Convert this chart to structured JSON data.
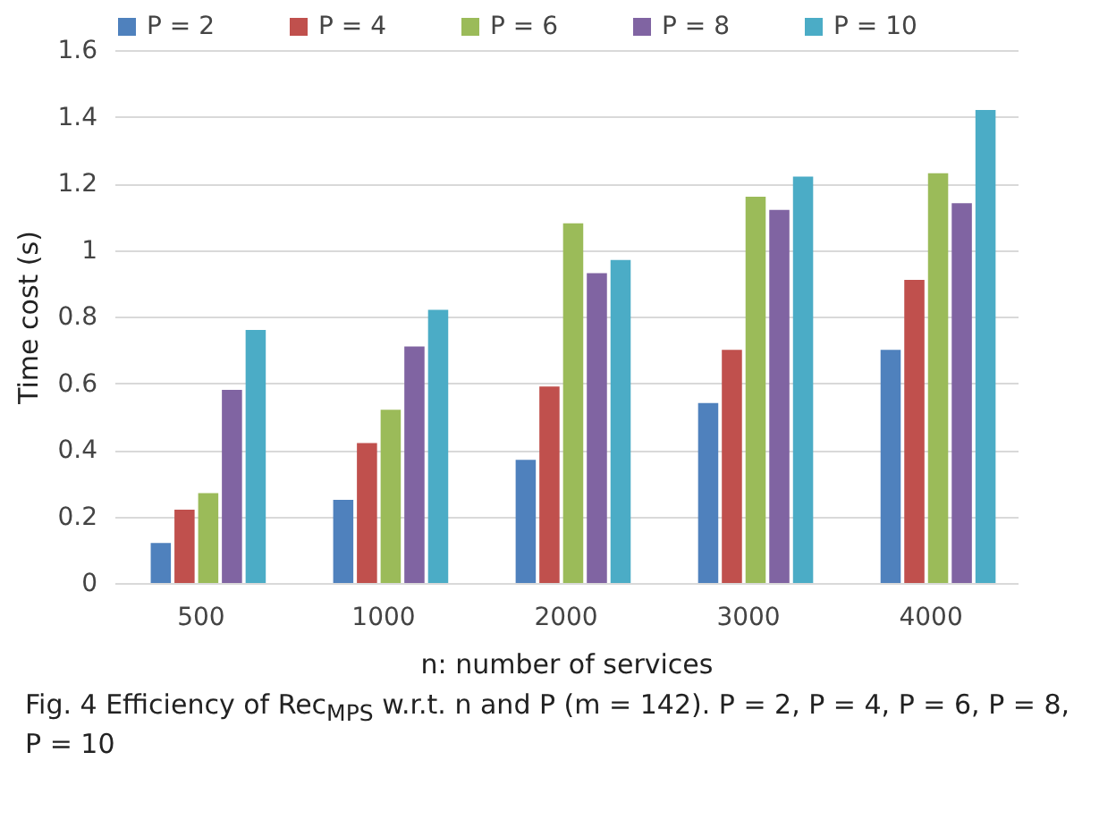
{
  "chart_data": {
    "type": "bar",
    "xlabel": "n: number of services",
    "ylabel": "Time cost (s)",
    "categories": [
      "500",
      "1000",
      "2000",
      "3000",
      "4000"
    ],
    "series": [
      {
        "name": "P = 2",
        "color": "#4f81bd",
        "values": [
          0.12,
          0.25,
          0.37,
          0.54,
          0.7
        ]
      },
      {
        "name": "P = 4",
        "color": "#c0504d",
        "values": [
          0.22,
          0.42,
          0.59,
          0.7,
          0.91
        ]
      },
      {
        "name": "P = 6",
        "color": "#9bbb59",
        "values": [
          0.27,
          0.52,
          1.08,
          1.16,
          1.23
        ]
      },
      {
        "name": "P = 8",
        "color": "#8064a2",
        "values": [
          0.58,
          0.71,
          0.93,
          1.12,
          1.14
        ]
      },
      {
        "name": "P = 10",
        "color": "#4bacc6",
        "values": [
          0.76,
          0.82,
          0.97,
          1.22,
          1.42
        ]
      }
    ],
    "ylim": [
      0,
      1.6
    ],
    "yticks": [
      0,
      0.2,
      0.4,
      0.6,
      0.8,
      1,
      1.2,
      1.4,
      1.6
    ],
    "grid": "y",
    "legend": "top",
    "annotations": [
      "Fig. 4 Efficiency of Rec$_{MPS}$ w.r.t. n and P (m = 142). P = 2, P = 4, P = 6, P = 8, P = 10"
    ]
  }
}
